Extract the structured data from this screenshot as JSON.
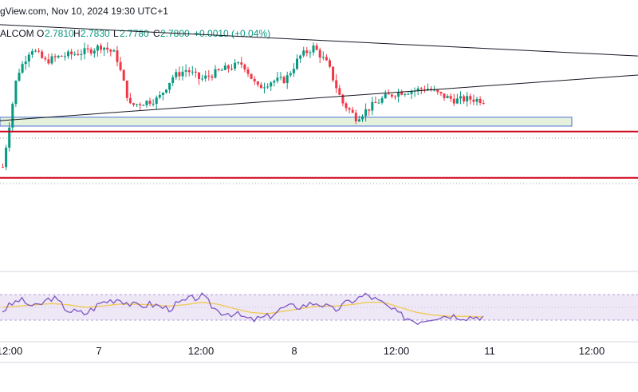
{
  "header": {
    "source_line": "gView.com, Nov 10, 2024 19:30 UTC+1",
    "symbol": "ALCOM",
    "open_label": "O",
    "open_value": "2.7810",
    "high_label": "H",
    "high_value": "2.7830",
    "low_label": "L",
    "low_value": "2.7780",
    "close_label": "C",
    "close_value": "2.7800",
    "change": "+0.0010 (+0.04%)"
  },
  "colors": {
    "up": "#089981",
    "down": "#f23645",
    "trendline": "#131722",
    "support_level": "#d0021b",
    "zone_fill": "#e5f1dc",
    "zone_border": "#4a6fd4",
    "rsi_line": "#7e57c2",
    "rsi_ma": "#f2c94c",
    "rsi_band": "#ede7f6"
  },
  "chart_data": {
    "type": "candlestick",
    "x_tick_labels": [
      "12:00",
      "7",
      "12:00",
      "8",
      "12:00",
      "11",
      "12:00"
    ],
    "price_close_path": [
      2.768,
      2.7815,
      2.7855,
      2.7835,
      2.7842,
      2.7846,
      2.785,
      2.7858,
      2.7845,
      2.777,
      2.7775,
      2.778,
      2.7812,
      2.7823,
      2.7808,
      2.7818,
      2.7826,
      2.7832,
      2.7796,
      2.7806,
      2.7808,
      2.7842,
      2.7856,
      2.783,
      2.7775,
      2.7752,
      2.7768,
      2.7782,
      2.779,
      2.7792,
      2.7796,
      2.7785,
      2.7778,
      2.778,
      2.7778
    ],
    "price_range": [
      2.755,
      2.789
    ],
    "trendlines": [
      {
        "from": [
          0,
          2.7889
        ],
        "to": [
          800,
          2.7843
        ]
      },
      {
        "from": [
          0,
          2.7748
        ],
        "to": [
          800,
          2.7815
        ]
      }
    ],
    "horizontal_levels": [
      2.7732,
      2.7664
    ],
    "support_zone": {
      "from_x": 0,
      "to_x": 717,
      "top": 2.7753,
      "bottom": 2.774
    },
    "rsi": {
      "band": [
        30,
        70
      ],
      "values": [
        45,
        62,
        50,
        66,
        45,
        40,
        58,
        64,
        52,
        55,
        48,
        60,
        68,
        44,
        40,
        30,
        35,
        50,
        52,
        58,
        45,
        60,
        70,
        55,
        38,
        28,
        35,
        38,
        35,
        36
      ],
      "ma": [
        50,
        52,
        54,
        56,
        54,
        50,
        52,
        55,
        55,
        54,
        52,
        54,
        58,
        55,
        48,
        42,
        40,
        44,
        48,
        52,
        52,
        54,
        58,
        58,
        50,
        42,
        38,
        36,
        36,
        35
      ]
    }
  }
}
